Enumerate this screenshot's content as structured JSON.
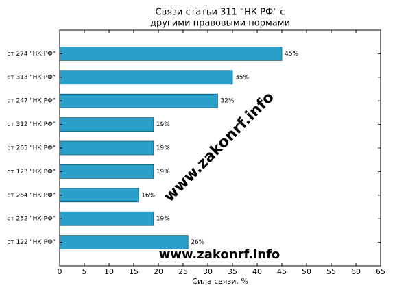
{
  "chart_data": {
    "type": "barh",
    "title": [
      "Связи статьи 311 \"НК РФ\" с",
      "другими правовыми нормами"
    ],
    "xlabel": "Сила связи, %",
    "watermark": "www.zakonrf.info",
    "categories": [
      "ст 274 \"НК РФ\"",
      "ст 313 \"НК РФ\"",
      "ст 247 \"НК РФ\"",
      "ст 312 \"НК РФ\"",
      "ст 265 \"НК РФ\"",
      "ст 123 \"НК РФ\"",
      "ст 264 \"НК РФ\"",
      "ст 252 \"НК РФ\"",
      "ст 122 \"НК РФ\""
    ],
    "values": [
      45,
      35,
      32,
      19,
      19,
      19,
      16,
      19,
      26
    ],
    "value_labels": [
      "45%",
      "35%",
      "32%",
      "19%",
      "19%",
      "19%",
      "16%",
      "19%",
      "26%"
    ],
    "color": "#2a9fc7",
    "xlim": [
      0,
      65
    ],
    "xticks": [
      0,
      5,
      10,
      15,
      20,
      25,
      30,
      35,
      40,
      45,
      50,
      55,
      60,
      65
    ]
  }
}
